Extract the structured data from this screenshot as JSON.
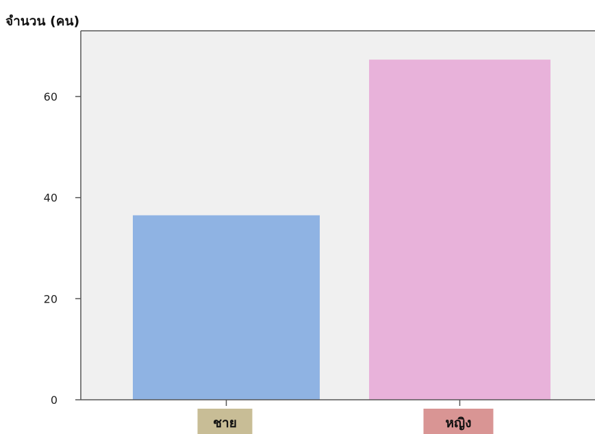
{
  "chart_data": {
    "type": "bar",
    "ylabel": "จำนวน (คน)",
    "xlabel": "",
    "categories": [
      "ชาย",
      "หญิง"
    ],
    "values": [
      36.5,
      67.3
    ],
    "yticks": [
      0,
      20,
      40,
      60
    ],
    "ylim": [
      0,
      73
    ],
    "grid": false,
    "colors": {
      "plot_background": "#f0f0f0",
      "bars": [
        "#8fb3e3",
        "#e8b2da"
      ],
      "category_label_backgrounds": [
        "#c8bd96",
        "#d99594"
      ]
    }
  }
}
